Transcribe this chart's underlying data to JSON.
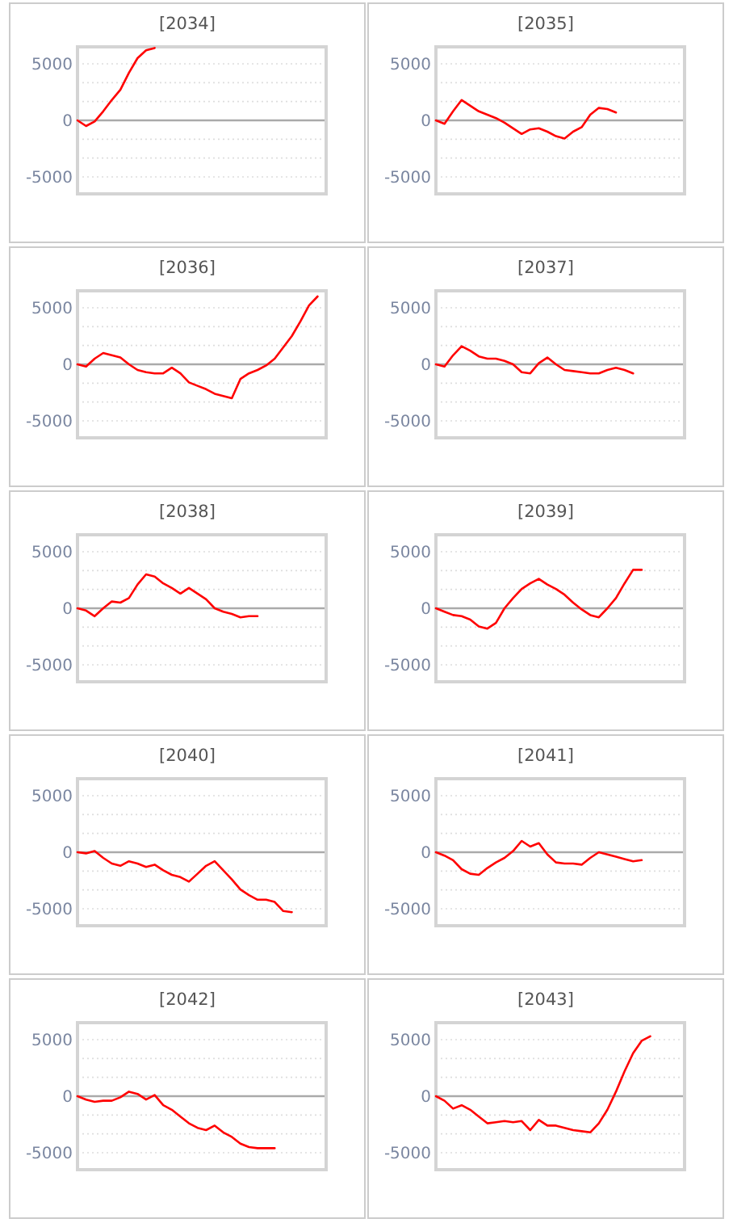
{
  "chart_data": [
    {
      "type": "line",
      "title": "[2034]",
      "categories": [
        null,
        null,
        null,
        null,
        null,
        null,
        null,
        null,
        null,
        null,
        null,
        null,
        null,
        null,
        null,
        null,
        null,
        null,
        null,
        null,
        null,
        null,
        null,
        null,
        null,
        null,
        null,
        null,
        null,
        null
      ],
      "series": [
        {
          "color": "#ff0000",
          "values": [
            0,
            -500,
            -100,
            800,
            1800,
            2700,
            4200,
            5500,
            6200,
            6400,
            null,
            null,
            null,
            null,
            null,
            null,
            null,
            null,
            null,
            null,
            null,
            null,
            null,
            null,
            null,
            null,
            null,
            null,
            null,
            null
          ]
        }
      ],
      "ylim": [
        -6500,
        6500
      ],
      "yticks": [
        5000,
        {
          "value": 3333,
          "label": null
        },
        {
          "value": 1667,
          "label": null
        },
        0,
        {
          "value": -1667,
          "label": null
        },
        {
          "value": -3333,
          "label": null
        },
        -5000
      ],
      "grid": "y"
    },
    {
      "type": "line",
      "title": "[2035]",
      "categories": [
        null,
        null,
        null,
        null,
        null,
        null,
        null,
        null,
        null,
        null,
        null,
        null,
        null,
        null,
        null,
        null,
        null,
        null,
        null,
        null,
        null,
        null,
        null,
        null,
        null,
        null,
        null,
        null,
        null,
        null
      ],
      "series": [
        {
          "color": "#ff0000",
          "values": [
            0,
            -300,
            800,
            1800,
            1300,
            800,
            500,
            200,
            -200,
            -700,
            -1200,
            -800,
            -700,
            -1000,
            -1400,
            -1600,
            -1000,
            -600,
            500,
            1100,
            1000,
            700,
            null,
            null,
            null,
            null,
            null,
            null,
            null,
            null
          ]
        }
      ],
      "ylim": [
        -6500,
        6500
      ],
      "yticks": [
        5000,
        {
          "value": 3333,
          "label": null
        },
        {
          "value": 1667,
          "label": null
        },
        0,
        {
          "value": -1667,
          "label": null
        },
        {
          "value": -3333,
          "label": null
        },
        -5000
      ],
      "grid": "y"
    },
    {
      "type": "line",
      "title": "[2036]",
      "categories": [
        null,
        null,
        null,
        null,
        null,
        null,
        null,
        null,
        null,
        null,
        null,
        null,
        null,
        null,
        null,
        null,
        null,
        null,
        null,
        null,
        null,
        null,
        null,
        null,
        null,
        null,
        null,
        null,
        null,
        null
      ],
      "series": [
        {
          "color": "#ff0000",
          "values": [
            0,
            -200,
            500,
            1000,
            800,
            600,
            0,
            -500,
            -700,
            -800,
            -800,
            -300,
            -800,
            -1600,
            -1900,
            -2200,
            -2600,
            -2800,
            -3000,
            -1300,
            -800,
            -500,
            -100,
            500,
            1500,
            2500,
            3800,
            5200,
            6000,
            null
          ]
        }
      ],
      "ylim": [
        -6500,
        6500
      ],
      "yticks": [
        5000,
        {
          "value": 3333,
          "label": null
        },
        {
          "value": 1667,
          "label": null
        },
        0,
        {
          "value": -1667,
          "label": null
        },
        {
          "value": -3333,
          "label": null
        },
        -5000
      ],
      "grid": "y"
    },
    {
      "type": "line",
      "title": "[2037]",
      "categories": [
        null,
        null,
        null,
        null,
        null,
        null,
        null,
        null,
        null,
        null,
        null,
        null,
        null,
        null,
        null,
        null,
        null,
        null,
        null,
        null,
        null,
        null,
        null,
        null,
        null,
        null,
        null,
        null,
        null,
        null
      ],
      "series": [
        {
          "color": "#ff0000",
          "values": [
            0,
            -200,
            800,
            1600,
            1200,
            700,
            500,
            500,
            300,
            0,
            -700,
            -800,
            100,
            600,
            0,
            -500,
            -600,
            -700,
            -800,
            -800,
            -500,
            -300,
            -500,
            -800,
            null,
            null,
            null,
            null,
            null,
            null
          ]
        }
      ],
      "ylim": [
        -6500,
        6500
      ],
      "yticks": [
        5000,
        {
          "value": 3333,
          "label": null
        },
        {
          "value": 1667,
          "label": null
        },
        0,
        {
          "value": -1667,
          "label": null
        },
        {
          "value": -3333,
          "label": null
        },
        -5000
      ],
      "grid": "y"
    },
    {
      "type": "line",
      "title": "[2038]",
      "categories": [
        null,
        null,
        null,
        null,
        null,
        null,
        null,
        null,
        null,
        null,
        null,
        null,
        null,
        null,
        null,
        null,
        null,
        null,
        null,
        null,
        null,
        null,
        null,
        null,
        null,
        null,
        null,
        null,
        null,
        null
      ],
      "series": [
        {
          "color": "#ff0000",
          "values": [
            0,
            -200,
            -700,
            0,
            600,
            500,
            900,
            2100,
            3000,
            2800,
            2200,
            1800,
            1300,
            1800,
            1300,
            800,
            0,
            -300,
            -500,
            -800,
            -700,
            -700,
            null,
            null,
            null,
            null,
            null,
            null,
            null,
            null
          ]
        }
      ],
      "ylim": [
        -6500,
        6500
      ],
      "yticks": [
        5000,
        {
          "value": 3333,
          "label": null
        },
        {
          "value": 1667,
          "label": null
        },
        0,
        {
          "value": -1667,
          "label": null
        },
        {
          "value": -3333,
          "label": null
        },
        -5000
      ],
      "grid": "y"
    },
    {
      "type": "line",
      "title": "[2039]",
      "categories": [
        null,
        null,
        null,
        null,
        null,
        null,
        null,
        null,
        null,
        null,
        null,
        null,
        null,
        null,
        null,
        null,
        null,
        null,
        null,
        null,
        null,
        null,
        null,
        null,
        null,
        null,
        null,
        null,
        null,
        null
      ],
      "series": [
        {
          "color": "#ff0000",
          "values": [
            0,
            -300,
            -600,
            -700,
            -1000,
            -1600,
            -1800,
            -1300,
            0,
            900,
            1700,
            2200,
            2600,
            2100,
            1700,
            1200,
            500,
            -100,
            -600,
            -800,
            0,
            900,
            2200,
            3400,
            3400,
            null,
            null,
            null,
            null,
            null
          ]
        }
      ],
      "ylim": [
        -6500,
        6500
      ],
      "yticks": [
        5000,
        {
          "value": 3333,
          "label": null
        },
        {
          "value": 1667,
          "label": null
        },
        0,
        {
          "value": -1667,
          "label": null
        },
        {
          "value": -3333,
          "label": null
        },
        -5000
      ],
      "grid": "y"
    },
    {
      "type": "line",
      "title": "[2040]",
      "categories": [
        null,
        null,
        null,
        null,
        null,
        null,
        null,
        null,
        null,
        null,
        null,
        null,
        null,
        null,
        null,
        null,
        null,
        null,
        null,
        null,
        null,
        null,
        null,
        null,
        null,
        null,
        null,
        null,
        null,
        null
      ],
      "series": [
        {
          "color": "#ff0000",
          "values": [
            0,
            -100,
            100,
            -500,
            -1000,
            -1200,
            -800,
            -1000,
            -1300,
            -1100,
            -1600,
            -2000,
            -2200,
            -2600,
            -1900,
            -1200,
            -800,
            -1600,
            -2400,
            -3300,
            -3800,
            -4200,
            -4200,
            -4400,
            -5200,
            -5300,
            null,
            null,
            null,
            null
          ]
        }
      ],
      "ylim": [
        -6500,
        6500
      ],
      "yticks": [
        5000,
        {
          "value": 3333,
          "label": null
        },
        {
          "value": 1667,
          "label": null
        },
        0,
        {
          "value": -1667,
          "label": null
        },
        {
          "value": -3333,
          "label": null
        },
        -5000
      ],
      "grid": "y"
    },
    {
      "type": "line",
      "title": "[2041]",
      "categories": [
        null,
        null,
        null,
        null,
        null,
        null,
        null,
        null,
        null,
        null,
        null,
        null,
        null,
        null,
        null,
        null,
        null,
        null,
        null,
        null,
        null,
        null,
        null,
        null,
        null,
        null,
        null,
        null,
        null,
        null
      ],
      "series": [
        {
          "color": "#ff0000",
          "values": [
            0,
            -300,
            -700,
            -1500,
            -1900,
            -2000,
            -1400,
            -900,
            -500,
            100,
            1000,
            500,
            800,
            -200,
            -900,
            -1000,
            -1000,
            -1100,
            -500,
            0,
            -200,
            -400,
            -600,
            -800,
            -700,
            null,
            null,
            null,
            null,
            null
          ]
        }
      ],
      "ylim": [
        -6500,
        6500
      ],
      "yticks": [
        5000,
        {
          "value": 3333,
          "label": null
        },
        {
          "value": 1667,
          "label": null
        },
        0,
        {
          "value": -1667,
          "label": null
        },
        {
          "value": -3333,
          "label": null
        },
        -5000
      ],
      "grid": "y"
    },
    {
      "type": "line",
      "title": "[2042]",
      "categories": [
        null,
        null,
        null,
        null,
        null,
        null,
        null,
        null,
        null,
        null,
        null,
        null,
        null,
        null,
        null,
        null,
        null,
        null,
        null,
        null,
        null,
        null,
        null,
        null,
        null,
        null,
        null,
        null,
        null,
        null
      ],
      "series": [
        {
          "color": "#ff0000",
          "values": [
            0,
            -300,
            -500,
            -400,
            -400,
            -100,
            400,
            200,
            -300,
            100,
            -800,
            -1200,
            -1800,
            -2400,
            -2800,
            -3000,
            -2600,
            -3200,
            -3600,
            -4200,
            -4500,
            -4600,
            -4600,
            -4600,
            null,
            null,
            null,
            null,
            null,
            null
          ]
        }
      ],
      "ylim": [
        -6500,
        6500
      ],
      "yticks": [
        5000,
        {
          "value": 3333,
          "label": null
        },
        {
          "value": 1667,
          "label": null
        },
        0,
        {
          "value": -1667,
          "label": null
        },
        {
          "value": -3333,
          "label": null
        },
        -5000
      ],
      "grid": "y"
    },
    {
      "type": "line",
      "title": "[2043]",
      "categories": [
        null,
        null,
        null,
        null,
        null,
        null,
        null,
        null,
        null,
        null,
        null,
        null,
        null,
        null,
        null,
        null,
        null,
        null,
        null,
        null,
        null,
        null,
        null,
        null,
        null,
        null,
        null,
        null,
        null,
        null
      ],
      "series": [
        {
          "color": "#ff0000",
          "values": [
            0,
            -400,
            -1100,
            -800,
            -1200,
            -1800,
            -2400,
            -2300,
            -2200,
            -2300,
            -2200,
            -3000,
            -2100,
            -2600,
            -2600,
            -2800,
            -3000,
            -3100,
            -3200,
            -2400,
            -1200,
            400,
            2200,
            3800,
            4900,
            5300,
            null,
            null,
            null,
            null
          ]
        }
      ],
      "ylim": [
        -6500,
        6500
      ],
      "yticks": [
        5000,
        {
          "value": 3333,
          "label": null
        },
        {
          "value": 1667,
          "label": null
        },
        0,
        {
          "value": -1667,
          "label": null
        },
        {
          "value": -3333,
          "label": null
        },
        -5000
      ],
      "grid": "y"
    }
  ]
}
